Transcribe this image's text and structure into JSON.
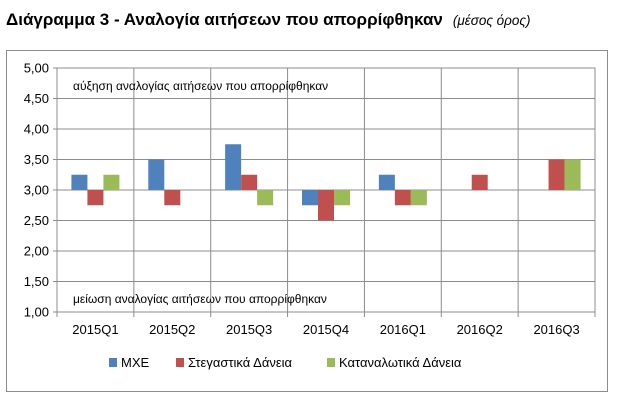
{
  "title": "Διάγραμμα 3 - Αναλογία αιτήσεων που απορρίφθηκαν",
  "subtitle": "(μέσος όρος)",
  "chart_data": {
    "type": "bar",
    "categories": [
      "2015Q1",
      "2015Q2",
      "2015Q3",
      "2015Q4",
      "2016Q1",
      "2016Q2",
      "2016Q3"
    ],
    "baseline": 3.0,
    "ylim": [
      1.0,
      5.0
    ],
    "yticks": [
      "1,00",
      "1,50",
      "2,00",
      "2,50",
      "3,00",
      "3,50",
      "4,00",
      "4,50",
      "5,00"
    ],
    "grid": true,
    "legend_position": "bottom",
    "annotations": {
      "top": "αύξηση αναλογίας αιτήσεων που απορρίφθηκαν",
      "bottom": "μείωση αναλογίας αιτήσεων που απορρίφθηκαν"
    },
    "series": [
      {
        "name": "ΜΧΕ",
        "color": "#4f81bd",
        "values": [
          3.25,
          3.5,
          3.75,
          2.75,
          3.25,
          3.0,
          3.0
        ]
      },
      {
        "name": "Στεγαστικά Δάνεια",
        "color": "#c0504d",
        "values": [
          2.75,
          2.75,
          3.25,
          2.5,
          2.75,
          3.25,
          3.5
        ]
      },
      {
        "name": "Καταναλωτικά Δάνεια",
        "color": "#9bbb59",
        "values": [
          3.25,
          3.0,
          2.75,
          2.75,
          2.75,
          3.0,
          3.5
        ]
      }
    ]
  }
}
